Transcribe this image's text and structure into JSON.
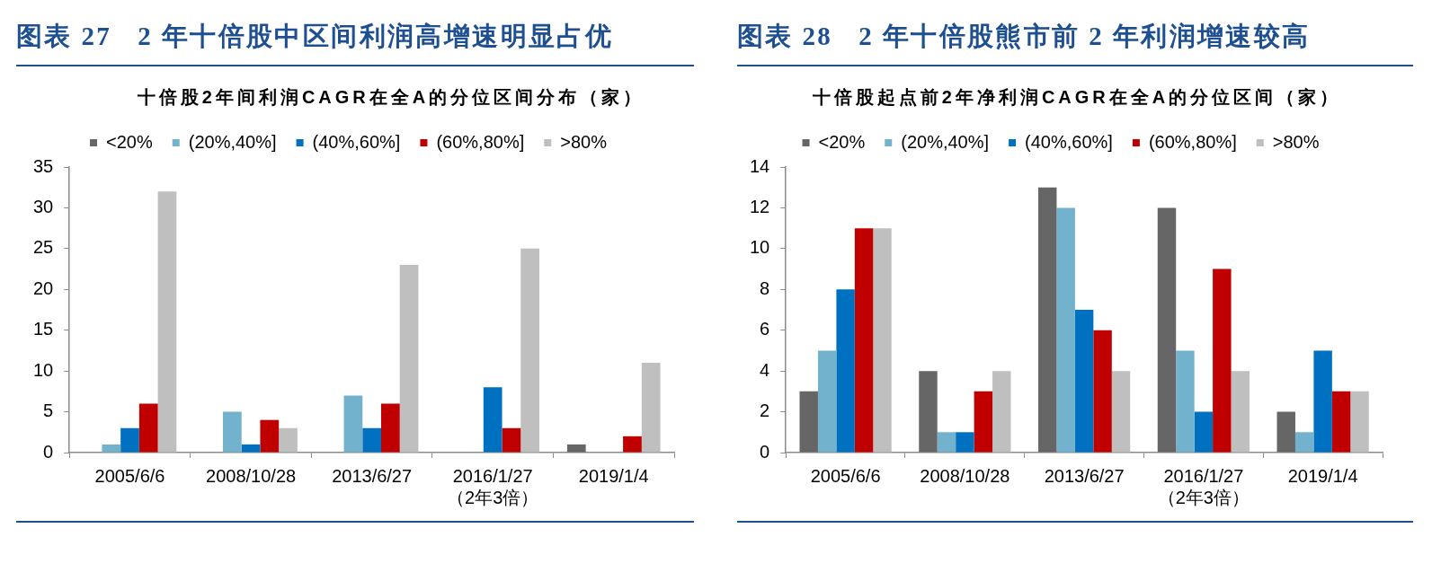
{
  "chart_data": [
    {
      "type": "bar",
      "title": "图表 27   2 年十倍股中区间利润高增速明显占优",
      "subtitle": "十倍股2年间利润CAGR在全A的分位区间分布（家）",
      "categories": [
        "2005/6/6",
        "2008/10/28",
        "2013/6/27",
        "2016/1/27\n（2年3倍）",
        "2019/1/4"
      ],
      "series": [
        {
          "name": "<20%",
          "color": "#666666",
          "values": [
            0,
            0,
            0,
            0,
            1
          ]
        },
        {
          "name": "(20%,40%]",
          "color": "#72b2cd",
          "values": [
            1,
            5,
            7,
            0,
            0
          ]
        },
        {
          "name": "(40%,60%]",
          "color": "#0070c0",
          "values": [
            3,
            1,
            3,
            8,
            0
          ]
        },
        {
          "name": "(60%,80%]",
          "color": "#c00000",
          "values": [
            6,
            4,
            6,
            3,
            2
          ]
        },
        {
          "name": ">80%",
          "color": "#bfbfbf",
          "values": [
            32,
            3,
            23,
            25,
            11
          ]
        }
      ],
      "ylim": [
        0,
        35
      ],
      "yticks": [
        0,
        5,
        10,
        15,
        20,
        25,
        30,
        35
      ],
      "grid": false,
      "legend": "top"
    },
    {
      "type": "bar",
      "title": "图表 28   2 年十倍股熊市前 2 年利润增速较高",
      "subtitle": "十倍股起点前2年净利润CAGR在全A的分位区间（家）",
      "categories": [
        "2005/6/6",
        "2008/10/28",
        "2013/6/27",
        "2016/1/27\n（2年3倍）",
        "2019/1/4"
      ],
      "series": [
        {
          "name": "<20%",
          "color": "#666666",
          "values": [
            3,
            4,
            13,
            12,
            2
          ]
        },
        {
          "name": "(20%,40%]",
          "color": "#72b2cd",
          "values": [
            5,
            1,
            12,
            5,
            1
          ]
        },
        {
          "name": "(40%,60%]",
          "color": "#0070c0",
          "values": [
            8,
            1,
            7,
            2,
            5
          ]
        },
        {
          "name": "(60%,80%]",
          "color": "#c00000",
          "values": [
            11,
            3,
            6,
            9,
            3
          ]
        },
        {
          "name": ">80%",
          "color": "#bfbfbf",
          "values": [
            11,
            4,
            4,
            4,
            3
          ]
        }
      ],
      "ylim": [
        0,
        14
      ],
      "yticks": [
        0,
        2,
        4,
        6,
        8,
        10,
        12,
        14
      ],
      "grid": false,
      "legend": "top"
    }
  ]
}
